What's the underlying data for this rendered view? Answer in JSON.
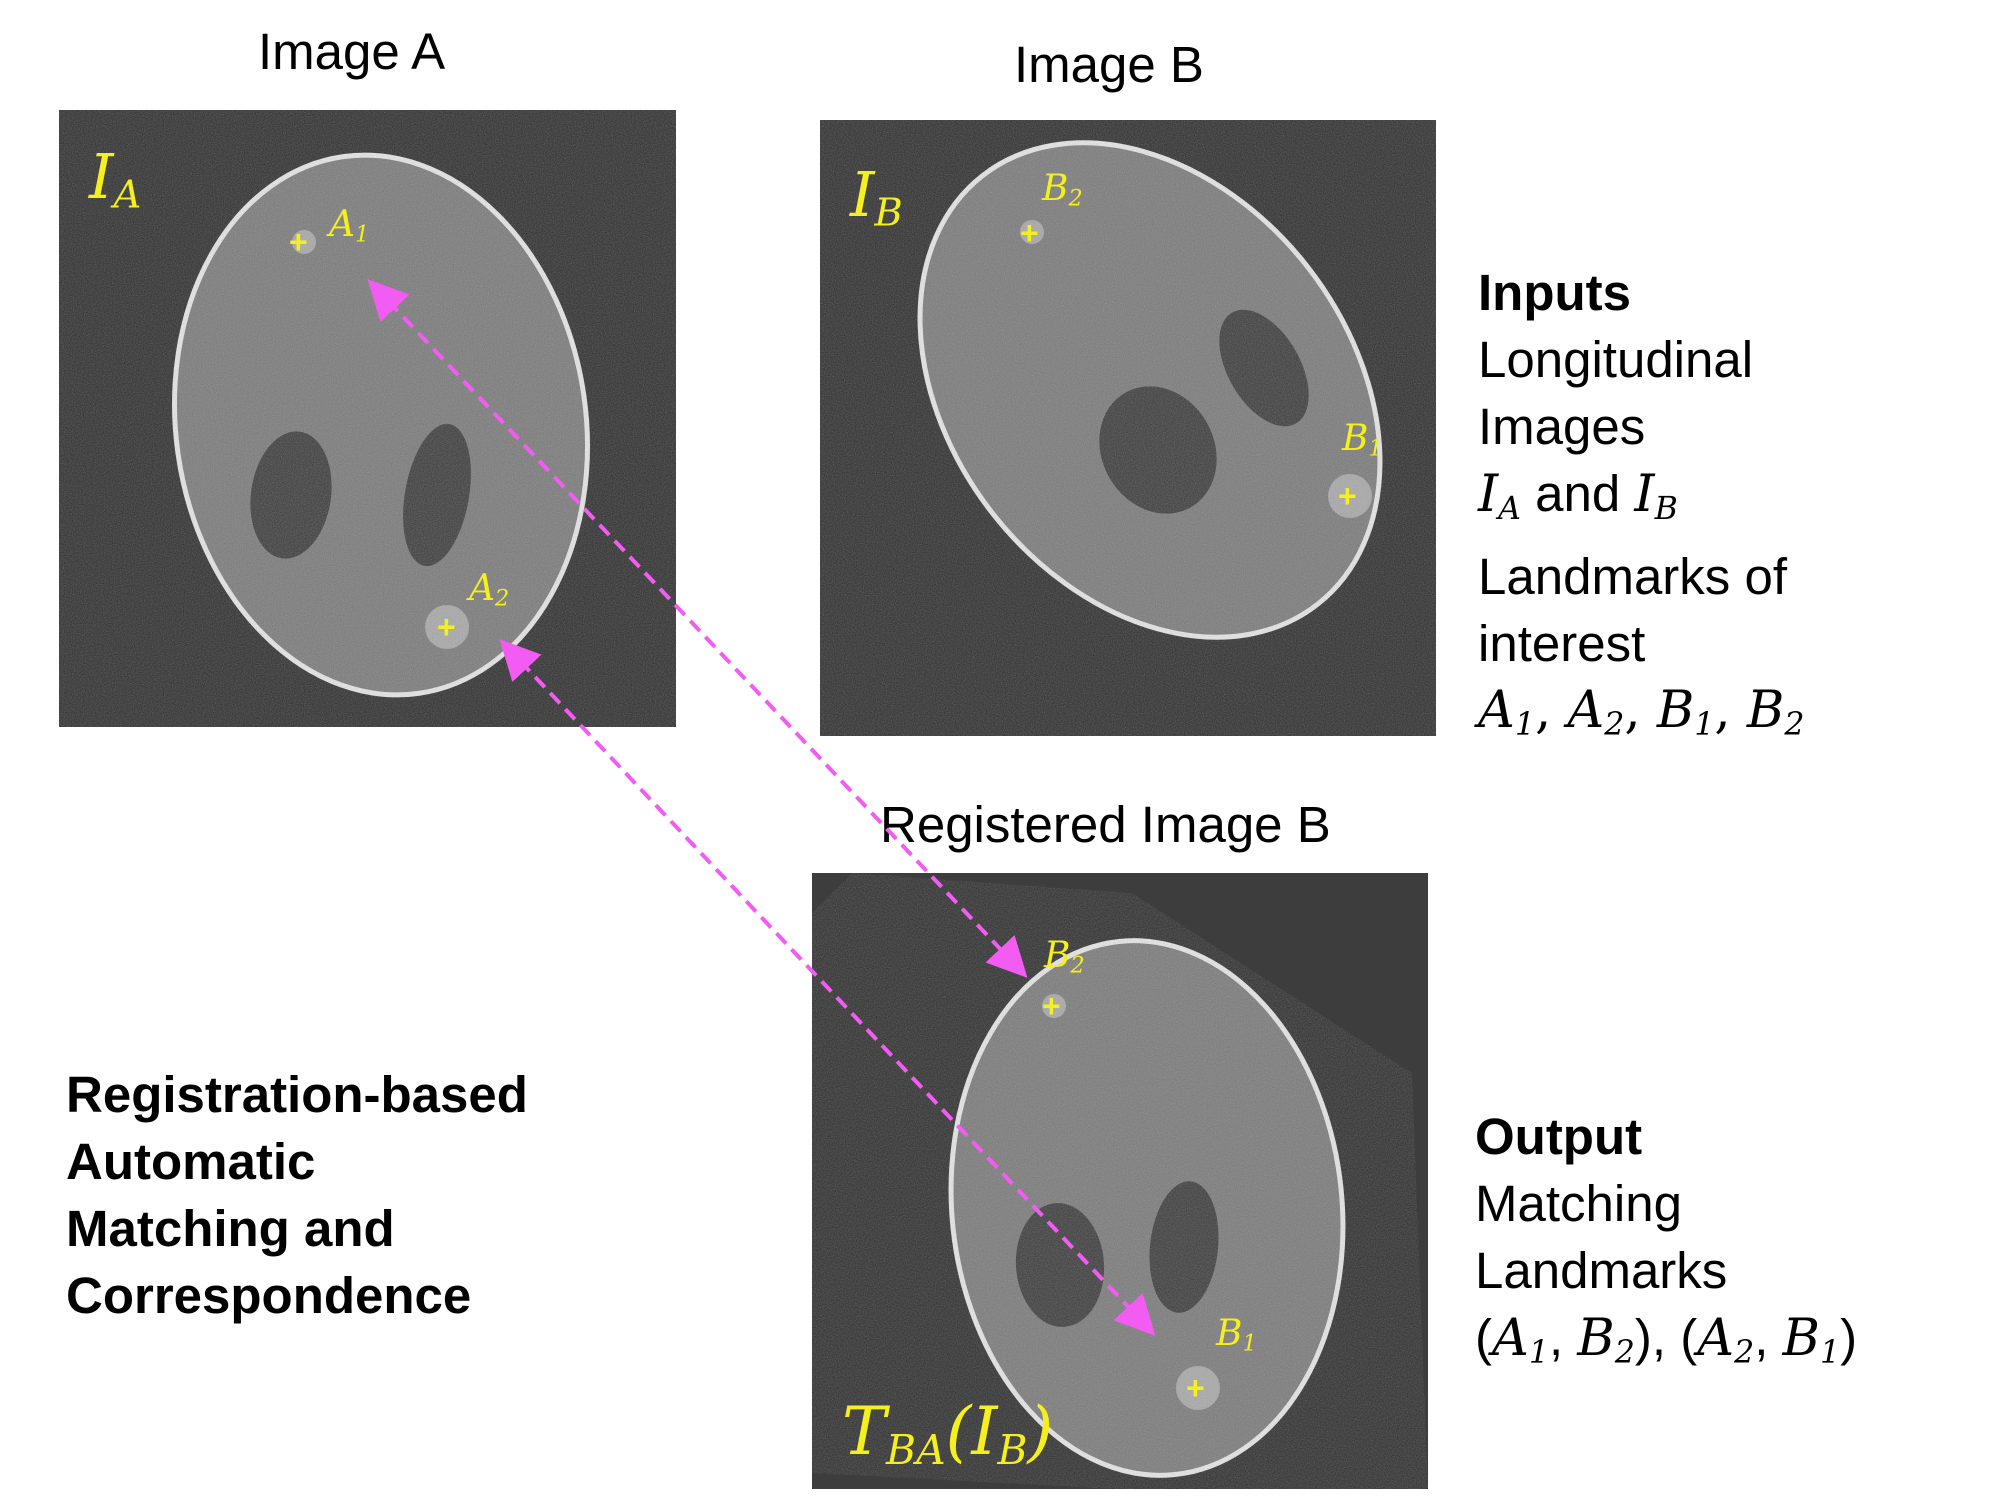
{
  "panels": {
    "image_a": {
      "title": "Image A",
      "symbol": "I",
      "symbol_sub": "A",
      "landmarks": [
        {
          "label": "A",
          "sub": "1"
        },
        {
          "label": "A",
          "sub": "2"
        }
      ]
    },
    "image_b": {
      "title": "Image B",
      "symbol": "I",
      "symbol_sub": "B",
      "landmarks": [
        {
          "label": "B",
          "sub": "2"
        },
        {
          "label": "B",
          "sub": "1"
        }
      ]
    },
    "registered_b": {
      "title": "Registered Image B",
      "expr_T": "T",
      "expr_T_sub": "BA",
      "expr_open": "(",
      "expr_I": "I",
      "expr_I_sub": "B",
      "expr_close": ")",
      "landmarks": [
        {
          "label": "B",
          "sub": "2"
        },
        {
          "label": "B",
          "sub": "1"
        }
      ]
    }
  },
  "inputs": {
    "heading": "Inputs",
    "line1": "Longitudinal",
    "line2": "Images",
    "line3_a": "I",
    "line3_a_sub": "A",
    "line3_and": " and ",
    "line3_b": "I",
    "line3_b_sub": "B",
    "line4": "Landmarks of",
    "line5": "interest",
    "landmark_list": [
      {
        "l": "A",
        "s": "1"
      },
      {
        "l": "A",
        "s": "2"
      },
      {
        "l": "B",
        "s": "1"
      },
      {
        "l": "B",
        "s": "2"
      }
    ],
    "separator": ", "
  },
  "output": {
    "heading": "Output",
    "line1": "Matching",
    "line2": "Landmarks",
    "pairs": [
      [
        {
          "l": "A",
          "s": "1"
        },
        {
          "l": "B",
          "s": "2"
        }
      ],
      [
        {
          "l": "A",
          "s": "2"
        },
        {
          "l": "B",
          "s": "1"
        }
      ]
    ],
    "pair_open": "(",
    "pair_close": ")",
    "pair_sep": ", ",
    "pairs_sep": ", "
  },
  "method": {
    "lines": [
      "Registration-based",
      "Automatic",
      "Matching and",
      "Correspondence"
    ]
  },
  "colors": {
    "landmark": "#f4ef1e",
    "arrow": "#f25cf2",
    "panel_bg": "#2e2e2e",
    "phantom": "#7a7a7a",
    "outline": "#e6e6e6",
    "hole": "#3c3c3c"
  }
}
